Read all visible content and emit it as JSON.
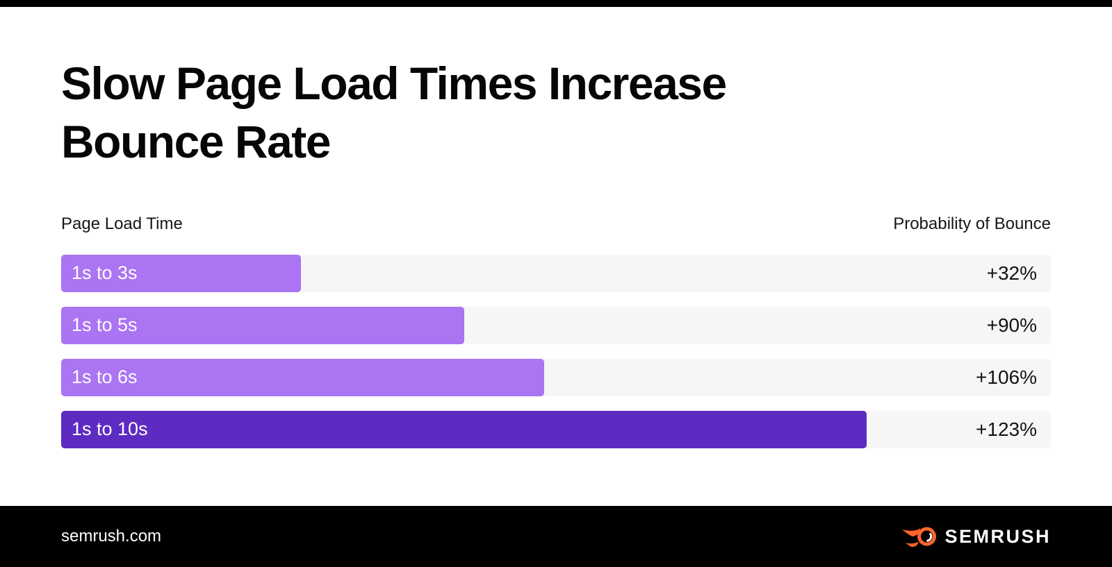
{
  "chart_data": {
    "type": "bar",
    "orientation": "horizontal",
    "title": "Slow Page Load Times Increase Bounce Rate",
    "left_header": "Page Load Time",
    "right_header": "Probability of Bounce",
    "categories": [
      "1s to 3s",
      "1s to 5s",
      "1s to 6s",
      "1s to 10s"
    ],
    "values_pct_increase": [
      32,
      90,
      106,
      123
    ],
    "value_labels": [
      "+32%",
      "+90%",
      "+106%",
      "+123%"
    ],
    "bar_length_pct_of_track": [
      24.2,
      40.7,
      48.8,
      81.4
    ],
    "bar_colors": [
      "#ab74f3",
      "#ab74f3",
      "#ab74f3",
      "#5e2bc2"
    ],
    "track_color": "#f6f6f7",
    "bar_label_color": "#ffffff",
    "value_color": "#141414",
    "grid": false,
    "legend": false
  },
  "footer": {
    "background": "#000000",
    "site_url": "semrush.com",
    "brand_name": "SEMRUSH",
    "logo_icon": "semrush-fireball-icon",
    "logo_color": "#ff642d"
  }
}
